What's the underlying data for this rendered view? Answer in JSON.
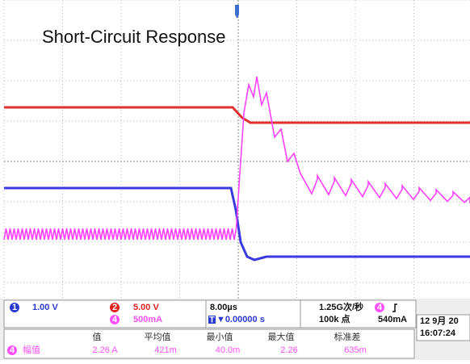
{
  "title": "Short-Circuit Response",
  "channels": [
    {
      "number": "1",
      "scale": "1.00 V"
    },
    {
      "number": "2",
      "scale": "5.00 V"
    },
    {
      "number": "4",
      "scale": "500mA"
    }
  ],
  "timebase": {
    "scale": "8.00µs",
    "trigger_marker": "T",
    "position": "▼0.00000 s",
    "sample_rate": "1.25G次/秒",
    "record_length": "100k 点",
    "trigger_channel": "4",
    "trigger_level": "540mA"
  },
  "datetime": {
    "date": "12 9月 20",
    "time": "16:07:24"
  },
  "measurements": {
    "headers": [
      "值",
      "平均值",
      "最小值",
      "最大值",
      "标准差"
    ],
    "channel": "4",
    "name": "幅值",
    "values": [
      "2.26 A",
      "421m",
      "40.0m",
      "2.26",
      "635m"
    ]
  }
}
